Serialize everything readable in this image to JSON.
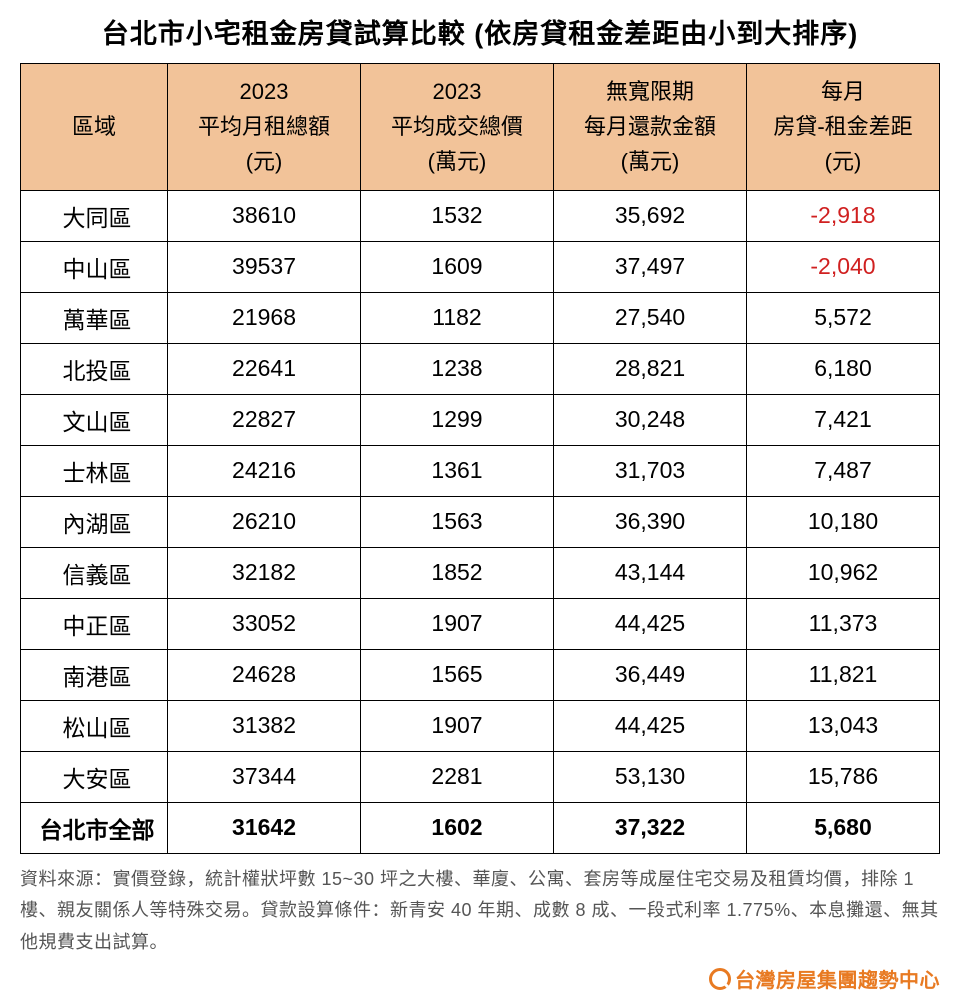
{
  "title": "台北市小宅租金房貸試算比較 (依房貸租金差距由小到大排序)",
  "columns": [
    "區域",
    "2023\n平均月租總額\n(元)",
    "2023\n平均成交總價\n(萬元)",
    "無寬限期\n每月還款金額\n(萬元)",
    "每月\n房貸-租金差距\n(元)"
  ],
  "rows": [
    {
      "district": "大同區",
      "rent": "38610",
      "price": "1532",
      "payment": "35,692",
      "diff": "-2,918",
      "negative": true
    },
    {
      "district": "中山區",
      "rent": "39537",
      "price": "1609",
      "payment": "37,497",
      "diff": "-2,040",
      "negative": true
    },
    {
      "district": "萬華區",
      "rent": "21968",
      "price": "1182",
      "payment": "27,540",
      "diff": "5,572",
      "negative": false
    },
    {
      "district": "北投區",
      "rent": "22641",
      "price": "1238",
      "payment": "28,821",
      "diff": "6,180",
      "negative": false
    },
    {
      "district": "文山區",
      "rent": "22827",
      "price": "1299",
      "payment": "30,248",
      "diff": "7,421",
      "negative": false
    },
    {
      "district": "士林區",
      "rent": "24216",
      "price": "1361",
      "payment": "31,703",
      "diff": "7,487",
      "negative": false
    },
    {
      "district": "內湖區",
      "rent": "26210",
      "price": "1563",
      "payment": "36,390",
      "diff": "10,180",
      "negative": false
    },
    {
      "district": "信義區",
      "rent": "32182",
      "price": "1852",
      "payment": "43,144",
      "diff": "10,962",
      "negative": false
    },
    {
      "district": "中正區",
      "rent": "33052",
      "price": "1907",
      "payment": "44,425",
      "diff": "11,373",
      "negative": false
    },
    {
      "district": "南港區",
      "rent": "24628",
      "price": "1565",
      "payment": "36,449",
      "diff": "11,821",
      "negative": false
    },
    {
      "district": "松山區",
      "rent": "31382",
      "price": "1907",
      "payment": "44,425",
      "diff": "13,043",
      "negative": false
    },
    {
      "district": "大安區",
      "rent": "37344",
      "price": "2281",
      "payment": "53,130",
      "diff": "15,786",
      "negative": false
    }
  ],
  "total": {
    "district": "台北市全部",
    "rent": "31642",
    "price": "1602",
    "payment": "37,322",
    "diff": "5,680"
  },
  "footnote": "資料來源：實價登錄，統計權狀坪數 15~30 坪之大樓、華廈、公寓、套房等成屋住宅交易及租賃均價，排除 1 樓、親友關係人等特殊交易。貸款設算條件：新青安 40 年期、成數 8 成、一段式利率 1.775%、本息攤還、無其他規費支出試算。",
  "brand": "台灣房屋集團趨勢中心",
  "colors": {
    "header_bg": "#f2c399",
    "border": "#000000",
    "negative": "#d02020",
    "footnote": "#555555",
    "brand": "#e87a22"
  }
}
